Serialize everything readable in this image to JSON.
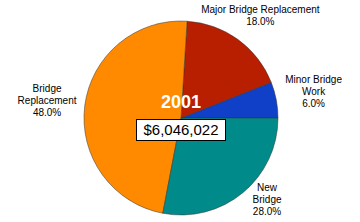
{
  "chart_data": {
    "type": "pie",
    "title": "2001",
    "subtitle": "$6,046,022",
    "categories": [
      "Minor Bridge\nWork",
      "Major Bridge Replacement",
      "Bridge\nReplacement",
      "New\nBridge"
    ],
    "values": [
      6,
      18,
      48,
      28
    ],
    "value_labels": [
      "6.0%",
      "18.0%",
      "48.0%",
      "28.0%"
    ],
    "colors": [
      "#1040c8",
      "#b81e00",
      "#ff8a00",
      "#008a8a"
    ],
    "data_labels": true
  }
}
